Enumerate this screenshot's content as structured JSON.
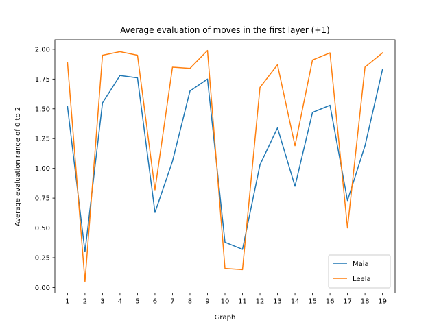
{
  "chart_data": {
    "type": "line",
    "title": "Average evaluation of moves in the first layer (+1)",
    "xlabel": "Graph",
    "ylabel": "Average evaluation range of 0 to 2",
    "x": [
      1,
      2,
      3,
      4,
      5,
      6,
      7,
      8,
      9,
      10,
      11,
      12,
      13,
      14,
      15,
      16,
      17,
      18,
      19
    ],
    "x_tick_labels": [
      "1",
      "2",
      "3",
      "4",
      "5",
      "6",
      "7",
      "8",
      "9",
      "10",
      "11",
      "12",
      "13",
      "14",
      "15",
      "16",
      "17",
      "18",
      "19"
    ],
    "y_ticks": [
      0.0,
      0.25,
      0.5,
      0.75,
      1.0,
      1.25,
      1.5,
      1.75,
      2.0
    ],
    "y_tick_labels": [
      "0.00",
      "0.25",
      "0.50",
      "0.75",
      "1.00",
      "1.25",
      "1.50",
      "1.75",
      "2.00"
    ],
    "xlim": [
      0.28,
      19.72
    ],
    "ylim": [
      -0.047,
      2.08
    ],
    "grid": false,
    "legend_position": "lower-right",
    "series": [
      {
        "name": "Maia",
        "color": "#1f77b4",
        "values": [
          1.52,
          0.3,
          1.55,
          1.78,
          1.76,
          0.63,
          1.06,
          1.65,
          1.75,
          0.38,
          0.32,
          1.03,
          1.34,
          0.85,
          1.47,
          1.53,
          0.73,
          1.19,
          1.83
        ]
      },
      {
        "name": "Leela",
        "color": "#ff7f0e",
        "values": [
          1.89,
          0.05,
          1.95,
          1.98,
          1.95,
          0.82,
          1.85,
          1.84,
          1.99,
          0.16,
          0.15,
          1.68,
          1.87,
          1.19,
          1.91,
          1.97,
          0.5,
          1.85,
          1.97
        ]
      }
    ]
  }
}
